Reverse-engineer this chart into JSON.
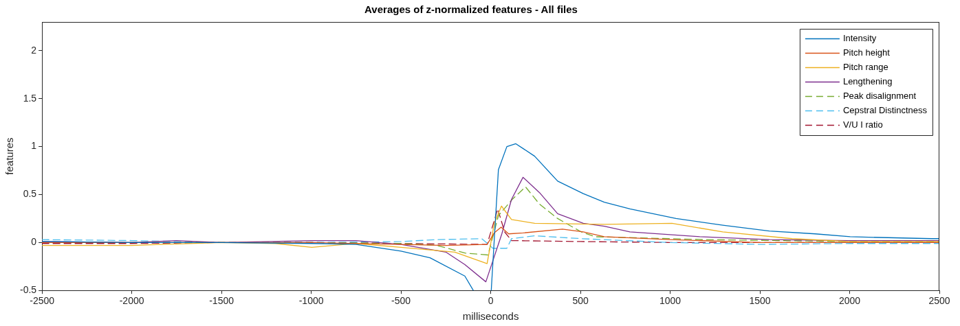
{
  "chart_data": {
    "type": "line",
    "title": "Averages of z-normalized features - All files",
    "xlabel": "milliseconds",
    "ylabel": "features",
    "xlim": [
      -2500,
      2500
    ],
    "xticks": [
      -2500,
      -2000,
      -1500,
      -1000,
      -500,
      0,
      500,
      1000,
      1500,
      2000,
      2500
    ],
    "ylim": [
      -0.5,
      2.3
    ],
    "yticks": [
      -0.5,
      0,
      0.5,
      1,
      1.5,
      2
    ],
    "grid": false,
    "legend": "top right",
    "marker": "none",
    "series": [
      {
        "name": "Intensity",
        "color": "#0072bd",
        "line_style": "solid",
        "x": [
          -2500,
          -2000,
          -1500,
          -1000,
          -750,
          -500,
          -338,
          -144,
          -97,
          -50,
          3,
          43,
          90,
          140,
          245,
          373,
          516,
          633,
          776,
          1033,
          1293,
          1553,
          1809,
          2003,
          2457,
          2500
        ],
        "values": [
          0.01,
          0,
          0,
          -0.01,
          -0.02,
          -0.09,
          -0.16,
          -0.35,
          -0.5,
          null,
          -0.5,
          0.76,
          1.0,
          1.03,
          0.9,
          0.64,
          0.51,
          0.42,
          0.35,
          0.25,
          0.18,
          0.12,
          0.09,
          0.06,
          0.04,
          0.04
        ]
      },
      {
        "name": "Pitch height",
        "color": "#d95319",
        "line_style": "solid",
        "x": [
          -2500,
          -2000,
          -1500,
          -1000,
          -500,
          -250,
          -20,
          20,
          58,
          100,
          180,
          400,
          516,
          633,
          1000,
          1500,
          2000,
          2500
        ],
        "values": [
          0,
          0,
          0,
          0,
          -0.02,
          -0.03,
          -0.02,
          0.1,
          0.16,
          0.09,
          0.1,
          0.14,
          0.11,
          0.06,
          0.03,
          0,
          0,
          0
        ]
      },
      {
        "name": "Pitch range",
        "color": "#edb120",
        "line_style": "solid",
        "x": [
          -2500,
          -2000,
          -1500,
          -1200,
          -997,
          -750,
          -500,
          -200,
          -20,
          20,
          60,
          116,
          245,
          633,
          1010,
          1293,
          1680,
          2000,
          2500
        ],
        "values": [
          -0.03,
          -0.03,
          0,
          -0.01,
          -0.05,
          -0.01,
          -0.05,
          -0.1,
          -0.22,
          0.2,
          0.38,
          0.24,
          0.2,
          0.19,
          0.2,
          0.11,
          0.04,
          0.01,
          0.01
        ]
      },
      {
        "name": "Lengthening",
        "color": "#7e2f8e",
        "line_style": "solid",
        "x": [
          -2500,
          -2000,
          -1750,
          -1500,
          -1000,
          -750,
          -500,
          -250,
          -144,
          -27,
          62,
          116,
          180,
          272,
          373,
          516,
          633,
          776,
          1165,
          1553,
          2000,
          2500
        ],
        "values": [
          0.01,
          0,
          0.02,
          0,
          0.02,
          0.02,
          -0.02,
          -0.1,
          -0.23,
          -0.41,
          0.09,
          0.45,
          0.68,
          0.52,
          0.3,
          0.2,
          0.17,
          0.11,
          0.06,
          0.03,
          0.02,
          0.02
        ]
      },
      {
        "name": "Peak disalignment",
        "color": "#77ac30",
        "line_style": "dashed",
        "x": [
          -2500,
          -2000,
          -1500,
          -1000,
          -500,
          -300,
          -144,
          -15,
          43,
          120,
          194,
          272,
          373,
          505,
          582,
          1200,
          2000,
          2500
        ],
        "values": [
          0,
          0,
          0,
          0,
          -0.01,
          -0.03,
          -0.11,
          -0.13,
          0.28,
          0.45,
          0.58,
          0.4,
          0.25,
          0.11,
          0.06,
          0.03,
          0.01,
          0.01
        ]
      },
      {
        "name": "Cepstral Distinctness",
        "color": "#4dbeee",
        "line_style": "dashed",
        "x": [
          -2500,
          -2000,
          -1500,
          -1000,
          -500,
          -300,
          -50,
          12,
          90,
          116,
          245,
          505,
          1000,
          1500,
          2000,
          2500
        ],
        "values": [
          0.03,
          0.02,
          0,
          0,
          0.01,
          0.03,
          0.04,
          -0.06,
          -0.06,
          0.04,
          0.07,
          0.04,
          0,
          -0.02,
          -0.01,
          -0.01
        ]
      },
      {
        "name": "V/U I ratio",
        "color": "#a2142f",
        "line_style": "dashed",
        "x": [
          -2500,
          -2000,
          -1500,
          -1000,
          -500,
          -20,
          39,
          78,
          116,
          500,
          1000,
          1500,
          2000,
          2500
        ],
        "values": [
          -0.01,
          -0.01,
          0,
          0,
          -0.01,
          -0.02,
          0.35,
          0.11,
          0.02,
          0.01,
          0,
          0,
          0,
          0
        ]
      }
    ]
  }
}
